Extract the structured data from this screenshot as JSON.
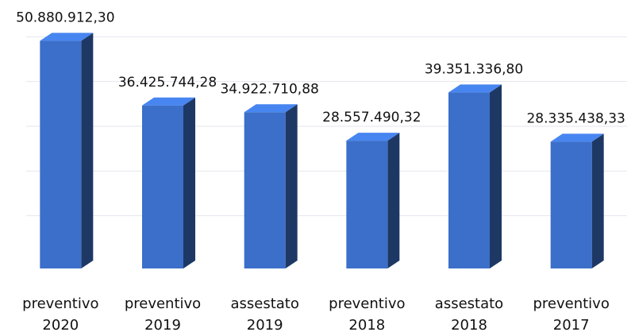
{
  "chart_data": {
    "type": "bar3d",
    "categories": [
      "preventivo\n2020",
      "preventivo\n2019",
      "assestato\n2019",
      "preventivo\n2018",
      "assestato\n2018",
      "preventivo\n2017"
    ],
    "values": [
      50880912.3,
      36425744.28,
      34922710.88,
      28557490.32,
      39351336.8,
      28335438.33
    ],
    "value_labels": [
      "50.880.912,30",
      "36.425.744,28",
      "34.922.710,88",
      "28.557.490,32",
      "39.351.336,80",
      "28.335.438,33"
    ],
    "color": "#3b6fc9",
    "ylim": [
      0,
      60000000
    ],
    "yticks": [
      10000000,
      20000000,
      30000000,
      40000000,
      50000000
    ],
    "grid": true
  }
}
